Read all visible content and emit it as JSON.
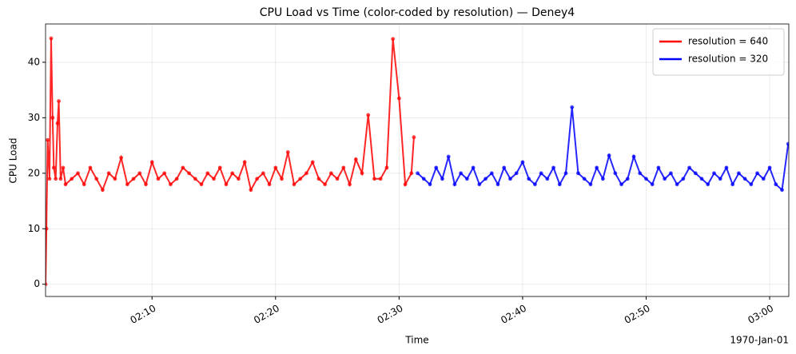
{
  "chart_data": {
    "type": "line",
    "title": "CPU Load vs Time (color-coded by resolution) — Deney4",
    "x_label": "Time",
    "y_label": "CPU Load",
    "x_offset_label": "1970-Jan-01",
    "xlim": [
      1.38,
      61.55
    ],
    "ylim": [
      -2.2,
      46.9
    ],
    "xticks": [
      {
        "value": 10,
        "label": "02:10"
      },
      {
        "value": 20,
        "label": "02:20"
      },
      {
        "value": 30,
        "label": "02:30"
      },
      {
        "value": 40,
        "label": "02:40"
      },
      {
        "value": 50,
        "label": "02:50"
      },
      {
        "value": 60,
        "label": "03:00"
      }
    ],
    "yticks": [
      0,
      10,
      20,
      30,
      40
    ],
    "grid": true,
    "legend": "upper right",
    "series": [
      {
        "name": "resolution = 640",
        "color": "#ff0000",
        "x": [
          1.38,
          1.45,
          1.55,
          1.7,
          1.83,
          1.95,
          2.05,
          2.2,
          2.35,
          2.45,
          2.6,
          2.8,
          3.0,
          3.5,
          4.0,
          4.5,
          5.0,
          5.5,
          6.0,
          6.5,
          7.0,
          7.5,
          8.0,
          8.5,
          9.0,
          9.5,
          10.0,
          10.5,
          11.0,
          11.5,
          12.0,
          12.5,
          13.0,
          13.5,
          14.0,
          14.5,
          15.0,
          15.5,
          16.0,
          16.5,
          17.0,
          17.5,
          18.0,
          18.5,
          19.0,
          19.5,
          20.0,
          20.5,
          21.0,
          21.5,
          22.0,
          22.5,
          23.0,
          23.5,
          24.0,
          24.5,
          25.0,
          25.5,
          26.0,
          26.5,
          27.0,
          27.5,
          28.0,
          28.5,
          29.0,
          29.5,
          30.0,
          30.5,
          31.0,
          31.2
        ],
        "values": [
          0,
          10,
          26,
          19,
          44.3,
          30,
          21,
          19,
          29,
          33,
          19,
          21,
          18,
          19,
          20,
          18,
          21,
          19,
          17,
          20,
          19,
          22.8,
          18,
          19,
          20,
          18,
          22,
          19,
          20,
          18,
          19,
          21,
          20,
          19,
          18,
          20,
          19,
          21,
          18,
          20,
          19,
          22,
          17,
          19,
          20,
          18,
          21,
          19,
          23.8,
          18,
          19,
          20,
          22,
          19,
          18,
          20,
          19,
          21,
          18,
          22.5,
          20,
          30.5,
          19,
          19,
          21,
          44.2,
          33.5,
          18,
          20,
          26.5
        ]
      },
      {
        "name": "resolution = 320",
        "color": "#0000ff",
        "x": [
          31.5,
          32.0,
          32.5,
          33.0,
          33.5,
          34.0,
          34.5,
          35.0,
          35.5,
          36.0,
          36.5,
          37.0,
          37.5,
          38.0,
          38.5,
          39.0,
          39.5,
          40.0,
          40.5,
          41.0,
          41.5,
          42.0,
          42.5,
          43.0,
          43.5,
          44.0,
          44.5,
          45.0,
          45.5,
          46.0,
          46.5,
          47.0,
          47.5,
          48.0,
          48.5,
          49.0,
          49.5,
          50.0,
          50.5,
          51.0,
          51.5,
          52.0,
          52.5,
          53.0,
          53.5,
          54.0,
          54.5,
          55.0,
          55.5,
          56.0,
          56.5,
          57.0,
          57.5,
          58.0,
          58.5,
          59.0,
          59.5,
          60.0,
          60.5,
          61.0,
          61.5
        ],
        "values": [
          20,
          19,
          18,
          21,
          19,
          23,
          18,
          20,
          19,
          21,
          18,
          19,
          20,
          18,
          21,
          19,
          20,
          22,
          19,
          18,
          20,
          19,
          21,
          18,
          20,
          31.9,
          20,
          19,
          18,
          21,
          19,
          23.2,
          20,
          18,
          19,
          23,
          20,
          19,
          18,
          21,
          19,
          20,
          18,
          19,
          21,
          20,
          19,
          18,
          20,
          19,
          21,
          18,
          20,
          19,
          18,
          20,
          19,
          21,
          18,
          17,
          25.3
        ]
      }
    ]
  }
}
